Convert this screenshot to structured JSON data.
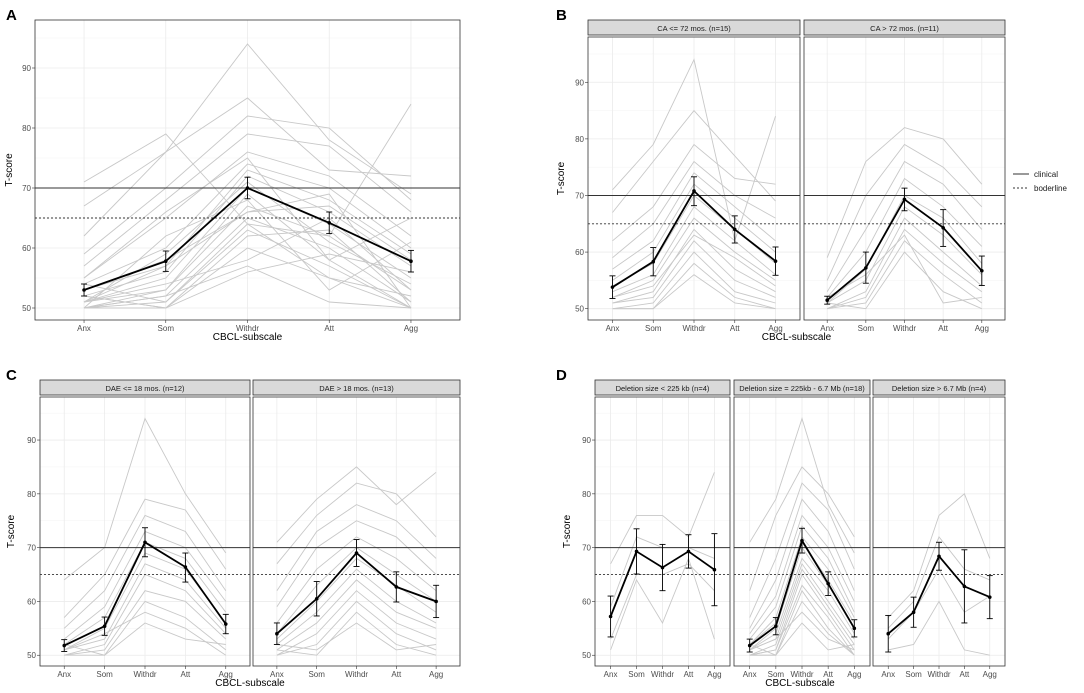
{
  "legend": {
    "clinical": "clinical",
    "borderline": "boderline"
  },
  "colors": {
    "individual": "#c8c8c8",
    "mean": "#000000",
    "grid": "#ebebeb",
    "strip": "#d9d9d9",
    "frame": "#333333"
  },
  "chart_data": [
    {
      "letter": "A",
      "type": "line",
      "xlabel": "CBCL-subscale",
      "ylabel": "T-score",
      "categories": [
        "Anx",
        "Som",
        "Withdr",
        "Att",
        "Agg"
      ],
      "ylim": [
        48,
        98
      ],
      "yticks": [
        50,
        60,
        70,
        80,
        90
      ],
      "reference_lines": {
        "clinical": 70,
        "borderline": 65
      },
      "panels": [
        {
          "strip": "",
          "mean": [
            53,
            57.8,
            70,
            64.2,
            57.8
          ],
          "error": [
            [
              52,
              54
            ],
            [
              56.1,
              59.5
            ],
            [
              68.2,
              71.8
            ],
            [
              62.4,
              66
            ],
            [
              56,
              59.6
            ]
          ],
          "individuals": [
            [
              71,
              79,
              64,
              62,
              84
            ],
            [
              67,
              76,
              94,
              78,
              69
            ],
            [
              62,
              76,
              85,
              73,
              72
            ],
            [
              59,
              70,
              82,
              80,
              68
            ],
            [
              57,
              68,
              79,
              77,
              66
            ],
            [
              55,
              65,
              76,
              72,
              62
            ],
            [
              54,
              60,
              74,
              70,
              60
            ],
            [
              53,
              57,
              73,
              68,
              59
            ],
            [
              52,
              56,
              72,
              66,
              57
            ],
            [
              51,
              55,
              70,
              64,
              55
            ],
            [
              51,
              53,
              67,
              62,
              53
            ],
            [
              50,
              52,
              65,
              60,
              51
            ],
            [
              50,
              51,
              63,
              57,
              50
            ],
            [
              50,
              50,
              60,
              55,
              50
            ],
            [
              51,
              54,
              58,
              65,
              53
            ],
            [
              52,
              50,
              56,
              59,
              56
            ],
            [
              50,
              62,
              68,
              53,
              61
            ],
            [
              53,
              58,
              66,
              69,
              50
            ],
            [
              54,
              51,
              64,
              55,
              52
            ],
            [
              51,
              59,
              71,
              61,
              54
            ],
            [
              50,
              53,
              69,
              58,
              50
            ],
            [
              52,
              50,
              62,
              63,
              51
            ],
            [
              55,
              66,
              75,
              58,
              65
            ],
            [
              50,
              52,
              57,
              51,
              50
            ],
            [
              51,
              57,
              66,
              67,
              58
            ]
          ]
        }
      ]
    },
    {
      "letter": "B",
      "type": "line",
      "xlabel": "CBCL-subscale",
      "ylabel": "T-score",
      "categories": [
        "Anx",
        "Som",
        "Withdr",
        "Att",
        "Agg"
      ],
      "ylim": [
        48,
        98
      ],
      "yticks": [
        50,
        60,
        70,
        80,
        90
      ],
      "reference_lines": {
        "clinical": 70,
        "borderline": 65
      },
      "panels": [
        {
          "strip": "CA <= 72 mos. (n=15)",
          "mean": [
            53.8,
            58.3,
            70.8,
            64,
            58.4
          ],
          "error": [
            [
              51.8,
              55.8
            ],
            [
              55.8,
              60.8
            ],
            [
              68.2,
              73.3
            ],
            [
              61.6,
              66.4
            ],
            [
              55.9,
              60.9
            ]
          ],
          "individuals": [
            [
              71,
              79,
              94,
              62,
              84
            ],
            [
              67,
              76,
              85,
              77,
              69
            ],
            [
              62,
              68,
              79,
              73,
              72
            ],
            [
              59,
              65,
              76,
              70,
              66
            ],
            [
              57,
              62,
              74,
              68,
              62
            ],
            [
              55,
              60,
              72,
              66,
              60
            ],
            [
              54,
              58,
              70,
              64,
              58
            ],
            [
              53,
              56,
              68,
              62,
              56
            ],
            [
              52,
              55,
              66,
              60,
              55
            ],
            [
              51,
              53,
              64,
              57,
              53
            ],
            [
              51,
              52,
              62,
              55,
              52
            ],
            [
              50,
              51,
              60,
              53,
              51
            ],
            [
              50,
              50,
              58,
              52,
              50
            ],
            [
              50,
              50,
              56,
              51,
              50
            ],
            [
              52,
              54,
              63,
              59,
              54
            ]
          ]
        },
        {
          "strip": "CA > 72 mos. (n=11)",
          "mean": [
            51.5,
            57.2,
            69.3,
            64.3,
            56.7
          ],
          "error": [
            [
              50.8,
              52.2
            ],
            [
              54.5,
              60
            ],
            [
              67.3,
              71.3
            ],
            [
              61,
              67.5
            ],
            [
              54.1,
              59.3
            ]
          ],
          "individuals": [
            [
              59,
              76,
              82,
              80,
              72
            ],
            [
              55,
              70,
              79,
              75,
              68
            ],
            [
              53,
              64,
              76,
              72,
              64
            ],
            [
              52,
              60,
              73,
              68,
              61
            ],
            [
              51,
              57,
              70,
              66,
              58
            ],
            [
              51,
              55,
              68,
              63,
              56
            ],
            [
              50,
              53,
              66,
              60,
              54
            ],
            [
              50,
              52,
              64,
              58,
              53
            ],
            [
              50,
              51,
              62,
              56,
              51
            ],
            [
              51,
              50,
              60,
              53,
              50
            ],
            [
              52,
              56,
              63,
              51,
              52
            ]
          ]
        }
      ]
    },
    {
      "letter": "C",
      "type": "line",
      "xlabel": "CBCL-subscale",
      "ylabel": "T-score",
      "categories": [
        "Anx",
        "Som",
        "Withdr",
        "Att",
        "Agg"
      ],
      "ylim": [
        48,
        98
      ],
      "yticks": [
        50,
        60,
        70,
        80,
        90
      ],
      "reference_lines": {
        "clinical": 70,
        "borderline": 65
      },
      "panels": [
        {
          "strip": "DAE <= 18 mos. (n=12)",
          "mean": [
            51.8,
            55.4,
            71,
            66.4,
            55.8
          ],
          "error": [
            [
              50.7,
              52.9
            ],
            [
              53.7,
              57.1
            ],
            [
              68.3,
              73.7
            ],
            [
              63.6,
              69
            ],
            [
              54,
              57.6
            ]
          ],
          "individuals": [
            [
              64,
              70,
              94,
              80,
              69
            ],
            [
              57,
              65,
              79,
              77,
              66
            ],
            [
              55,
              62,
              76,
              73,
              62
            ],
            [
              53,
              59,
              73,
              70,
              60
            ],
            [
              52,
              57,
              71,
              68,
              58
            ],
            [
              51,
              55,
              69,
              66,
              56
            ],
            [
              51,
              53,
              67,
              64,
              55
            ],
            [
              50,
              52,
              65,
              62,
              54
            ],
            [
              50,
              51,
              62,
              60,
              53
            ],
            [
              50,
              50,
              60,
              57,
              51
            ],
            [
              51,
              54,
              58,
              55,
              50
            ],
            [
              52,
              50,
              56,
              53,
              52
            ]
          ]
        },
        {
          "strip": "DAE > 18 mos. (n=13)",
          "mean": [
            54,
            60.5,
            69,
            62.7,
            60
          ],
          "error": [
            [
              52,
              56
            ],
            [
              57.3,
              63.7
            ],
            [
              66.5,
              71.5
            ],
            [
              59.9,
              65.5
            ],
            [
              57,
              63
            ]
          ],
          "individuals": [
            [
              71,
              79,
              85,
              78,
              84
            ],
            [
              67,
              76,
              82,
              80,
              72
            ],
            [
              62,
              73,
              78,
              75,
              68
            ],
            [
              59,
              70,
              75,
              72,
              65
            ],
            [
              56,
              66,
              72,
              68,
              62
            ],
            [
              54,
              63,
              70,
              65,
              60
            ],
            [
              53,
              60,
              68,
              63,
              58
            ],
            [
              52,
              58,
              66,
              60,
              56
            ],
            [
              51,
              56,
              64,
              58,
              55
            ],
            [
              50,
              54,
              62,
              56,
              53
            ],
            [
              50,
              52,
              60,
              54,
              51
            ],
            [
              51,
              50,
              58,
              52,
              50
            ],
            [
              52,
              51,
              56,
              51,
              52
            ]
          ]
        }
      ]
    },
    {
      "letter": "D",
      "type": "line",
      "xlabel": "CBCL-subscale",
      "ylabel": "T-score",
      "categories": [
        "Anx",
        "Som",
        "Withdr",
        "Att",
        "Agg"
      ],
      "ylim": [
        48,
        98
      ],
      "yticks": [
        50,
        60,
        70,
        80,
        90
      ],
      "reference_lines": {
        "clinical": 70,
        "borderline": 65
      },
      "panels": [
        {
          "strip": "Deletion size < 225 kb (n=4)",
          "mean": [
            57.2,
            69.3,
            66.3,
            69.3,
            65.9
          ],
          "error": [
            [
              53.4,
              61
            ],
            [
              65.1,
              73.5
            ],
            [
              62,
              70.6
            ],
            [
              66.2,
              72.4
            ],
            [
              59.2,
              72.6
            ]
          ],
          "individuals": [
            [
              67,
              76,
              76,
              72,
              84
            ],
            [
              59,
              72,
              70,
              70,
              68
            ],
            [
              53,
              65,
              65,
              67,
              62
            ],
            [
              51,
              64,
              56,
              68,
              53
            ]
          ]
        },
        {
          "strip": "Deletion size = 225kb - 6.7 Mb (n=18)",
          "mean": [
            51.8,
            55.4,
            71.3,
            63.3,
            55
          ],
          "error": [
            [
              50.6,
              53
            ],
            [
              53.8,
              57
            ],
            [
              69,
              73.6
            ],
            [
              61.1,
              65.5
            ],
            [
              53.4,
              56.6
            ]
          ],
          "individuals": [
            [
              71,
              79,
              94,
              78,
              69
            ],
            [
              62,
              76,
              85,
              80,
              72
            ],
            [
              57,
              68,
              82,
              77,
              66
            ],
            [
              55,
              64,
              79,
              73,
              62
            ],
            [
              54,
              61,
              76,
              70,
              60
            ],
            [
              53,
              59,
              74,
              68,
              58
            ],
            [
              52,
              57,
              72,
              66,
              57
            ],
            [
              52,
              56,
              71,
              64,
              56
            ],
            [
              51,
              55,
              70,
              63,
              55
            ],
            [
              51,
              54,
              68,
              62,
              54
            ],
            [
              51,
              53,
              67,
              60,
              53
            ],
            [
              50,
              52,
              66,
              59,
              52
            ],
            [
              50,
              51,
              65,
              58,
              51
            ],
            [
              50,
              51,
              63,
              57,
              50
            ],
            [
              50,
              50,
              62,
              55,
              50
            ],
            [
              50,
              50,
              60,
              54,
              50
            ],
            [
              51,
              53,
              58,
              53,
              51
            ],
            [
              52,
              50,
              56,
              51,
              52
            ]
          ]
        },
        {
          "strip": "Deletion size > 6.7 Mb (n=4)",
          "mean": [
            54,
            58,
            68.4,
            62.8,
            60.8
          ],
          "error": [
            [
              50.6,
              57.4
            ],
            [
              55.2,
              60.8
            ],
            [
              65.8,
              71
            ],
            [
              56,
              69.6
            ],
            [
              56.8,
              64.8
            ]
          ],
          "individuals": [
            [
              57,
              62,
              76,
              80,
              68
            ],
            [
              55,
              60,
              72,
              66,
              64
            ],
            [
              53,
              58,
              66,
              58,
              61
            ],
            [
              51,
              52,
              60,
              51,
              50
            ]
          ]
        }
      ]
    }
  ]
}
